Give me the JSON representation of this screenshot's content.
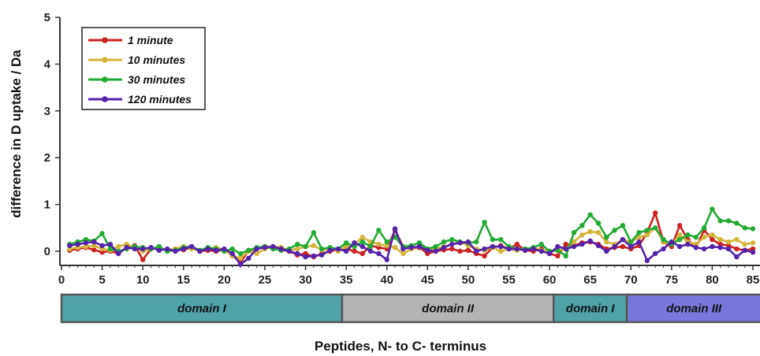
{
  "chart_data": {
    "type": "line",
    "xlabel": "Peptides, N- to C- terminus",
    "ylabel": "difference in D uptake / Da",
    "xlim": [
      0,
      86
    ],
    "ylim": [
      -0.3,
      5
    ],
    "xticks": [
      0,
      5,
      10,
      15,
      20,
      25,
      30,
      35,
      40,
      45,
      50,
      55,
      60,
      65,
      70,
      75,
      80,
      85
    ],
    "yticks": [
      0,
      1,
      2,
      3,
      4,
      5
    ],
    "legend_position": "top-left",
    "x": [
      1,
      2,
      3,
      4,
      5,
      6,
      7,
      8,
      9,
      10,
      11,
      12,
      13,
      14,
      15,
      16,
      17,
      18,
      19,
      20,
      21,
      22,
      23,
      24,
      25,
      26,
      27,
      28,
      29,
      30,
      31,
      32,
      33,
      34,
      35,
      36,
      37,
      38,
      39,
      40,
      41,
      42,
      43,
      44,
      45,
      46,
      47,
      48,
      49,
      50,
      51,
      52,
      53,
      54,
      55,
      56,
      57,
      58,
      59,
      60,
      61,
      62,
      63,
      64,
      65,
      66,
      67,
      68,
      69,
      70,
      71,
      72,
      73,
      74,
      75,
      76,
      77,
      78,
      79,
      80,
      81,
      82,
      83,
      84,
      85
    ],
    "series": [
      {
        "name": "1 minute",
        "color": "#cc2222",
        "values": [
          0.02,
          0.05,
          0.08,
          0.03,
          -0.02,
          0.0,
          -0.05,
          0.08,
          0.12,
          -0.18,
          0.05,
          0.08,
          0.02,
          0.05,
          0.03,
          0.08,
          0.0,
          0.02,
          0.0,
          0.03,
          -0.05,
          -0.25,
          0.02,
          0.05,
          0.1,
          0.08,
          0.03,
          0.0,
          -0.08,
          -0.05,
          -0.12,
          -0.05,
          0.0,
          0.03,
          0.05,
          0.0,
          -0.05,
          0.12,
          0.08,
          0.05,
          0.45,
          0.1,
          0.05,
          0.08,
          -0.05,
          0.0,
          0.03,
          0.05,
          0.0,
          0.02,
          -0.05,
          -0.1,
          0.08,
          0.12,
          0.05,
          0.15,
          0.02,
          0.0,
          0.05,
          -0.05,
          -0.1,
          0.15,
          0.12,
          0.18,
          0.2,
          0.15,
          0.05,
          0.08,
          0.1,
          0.05,
          0.12,
          0.4,
          0.82,
          0.2,
          0.1,
          0.55,
          0.25,
          0.08,
          0.45,
          0.25,
          0.15,
          0.12,
          0.05,
          0.02,
          0.05
        ]
      },
      {
        "name": "10 minutes",
        "color": "#d4b43a",
        "values": [
          0.05,
          0.08,
          0.1,
          0.12,
          0.05,
          0.02,
          0.1,
          0.15,
          0.08,
          0.0,
          0.05,
          0.08,
          0.02,
          0.05,
          0.1,
          0.05,
          0.02,
          0.05,
          0.08,
          0.03,
          -0.1,
          -0.15,
          0.0,
          -0.05,
          0.05,
          0.1,
          0.08,
          0.02,
          0.05,
          0.1,
          0.12,
          0.03,
          0.05,
          0.0,
          0.1,
          0.15,
          0.3,
          0.2,
          0.15,
          0.12,
          0.08,
          -0.05,
          0.05,
          0.1,
          0.03,
          0.05,
          0.1,
          0.15,
          0.2,
          0.12,
          0.05,
          0.02,
          0.08,
          0.0,
          0.05,
          0.02,
          0.05,
          0.08,
          0.02,
          0.0,
          0.02,
          0.05,
          0.2,
          0.35,
          0.42,
          0.4,
          0.2,
          0.15,
          0.25,
          0.2,
          0.3,
          0.35,
          0.5,
          0.2,
          0.15,
          0.35,
          0.2,
          0.15,
          0.3,
          0.35,
          0.25,
          0.2,
          0.25,
          0.15,
          0.18
        ]
      },
      {
        "name": "30 minutes",
        "color": "#22aa33",
        "values": [
          0.15,
          0.2,
          0.25,
          0.22,
          0.38,
          0.05,
          0.0,
          0.05,
          0.1,
          0.08,
          0.05,
          0.1,
          0.0,
          0.02,
          0.08,
          0.1,
          0.02,
          0.08,
          0.05,
          0.0,
          0.05,
          -0.05,
          0.02,
          0.08,
          0.1,
          0.05,
          0.02,
          0.05,
          0.15,
          0.1,
          0.4,
          0.05,
          0.08,
          0.05,
          0.18,
          0.1,
          0.2,
          0.1,
          0.45,
          0.2,
          0.3,
          0.1,
          0.12,
          0.18,
          0.05,
          0.1,
          0.2,
          0.25,
          0.2,
          0.18,
          0.2,
          0.62,
          0.25,
          0.25,
          0.1,
          0.05,
          0.05,
          0.08,
          0.15,
          0.0,
          0.02,
          -0.1,
          0.4,
          0.55,
          0.78,
          0.6,
          0.3,
          0.45,
          0.55,
          0.2,
          0.4,
          0.45,
          0.5,
          0.25,
          0.15,
          0.25,
          0.35,
          0.3,
          0.5,
          0.9,
          0.65,
          0.65,
          0.6,
          0.5,
          0.48
        ]
      },
      {
        "name": "120 minutes",
        "color": "#5522aa",
        "values": [
          0.12,
          0.15,
          0.18,
          0.2,
          0.12,
          0.15,
          -0.05,
          0.08,
          0.05,
          0.05,
          0.08,
          0.02,
          0.05,
          0.0,
          0.05,
          0.1,
          0.0,
          0.05,
          0.02,
          0.05,
          -0.05,
          -0.28,
          -0.15,
          0.05,
          0.08,
          0.1,
          0.05,
          0.0,
          -0.05,
          -0.12,
          -0.1,
          -0.08,
          0.02,
          0.05,
          0.0,
          0.18,
          0.1,
          0.0,
          -0.05,
          -0.18,
          0.48,
          0.05,
          0.08,
          0.1,
          0.02,
          0.0,
          0.08,
          0.15,
          0.18,
          0.2,
          0.0,
          0.05,
          0.1,
          0.1,
          0.05,
          0.05,
          0.02,
          0.05,
          0.0,
          -0.05,
          0.1,
          0.05,
          0.1,
          0.15,
          0.22,
          0.12,
          0.0,
          0.1,
          0.25,
          0.1,
          0.2,
          -0.2,
          -0.05,
          0.05,
          0.2,
          0.1,
          0.15,
          0.08,
          0.05,
          0.1,
          0.08,
          0.05,
          -0.12,
          0.02,
          -0.02
        ]
      }
    ],
    "domains": [
      {
        "label": "domain I",
        "start": 0,
        "end": 34.5,
        "color": "#4fa3a7"
      },
      {
        "label": "domain II",
        "start": 34.5,
        "end": 60.5,
        "color": "#b3b3b3"
      },
      {
        "label": "domain I",
        "start": 60.5,
        "end": 69.5,
        "color": "#4fa3a7"
      },
      {
        "label": "domain III",
        "start": 69.5,
        "end": 86,
        "color": "#7a77dc"
      }
    ]
  }
}
